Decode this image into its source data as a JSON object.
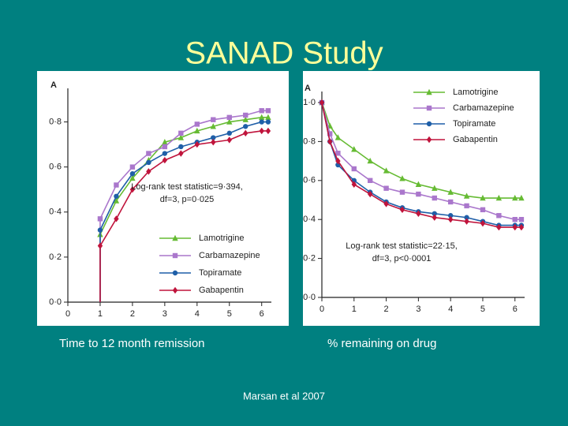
{
  "slide": {
    "title": "SANAD Study",
    "citation": "Marsan et al 2007"
  },
  "chart_data": [
    {
      "type": "line",
      "panel_label": "A",
      "caption": "Time to 12 month remission",
      "annotation": [
        "Log-rank test statistic=9·394,",
        "df=3, p=0·025"
      ],
      "legend": "lower right",
      "x": [
        1,
        1,
        1.5,
        2,
        2.5,
        3,
        3.5,
        4,
        4.5,
        5,
        5.5,
        6,
        6.2
      ],
      "series": [
        {
          "name": "Lamotrigine",
          "color": "#66bb33",
          "marker": "triangle",
          "values": [
            0,
            0.3,
            0.45,
            0.55,
            0.63,
            0.71,
            0.73,
            0.76,
            0.78,
            0.8,
            0.81,
            0.82,
            0.82
          ]
        },
        {
          "name": "Carbamazepine",
          "color": "#aa77cc",
          "marker": "square",
          "values": [
            0,
            0.37,
            0.52,
            0.6,
            0.66,
            0.69,
            0.75,
            0.79,
            0.81,
            0.82,
            0.83,
            0.85,
            0.85
          ]
        },
        {
          "name": "Topiramate",
          "color": "#1f5fa8",
          "marker": "circle",
          "values": [
            0,
            0.32,
            0.47,
            0.57,
            0.62,
            0.66,
            0.69,
            0.71,
            0.73,
            0.75,
            0.78,
            0.8,
            0.8
          ]
        },
        {
          "name": "Gabapentin",
          "color": "#c0143c",
          "marker": "diamond",
          "values": [
            0,
            0.25,
            0.37,
            0.5,
            0.58,
            0.63,
            0.66,
            0.7,
            0.71,
            0.72,
            0.75,
            0.76,
            0.76
          ]
        }
      ],
      "xlim": [
        0,
        6.3
      ],
      "xticks": [
        0,
        1,
        2,
        3,
        4,
        5,
        6
      ],
      "ylim": [
        0,
        0.9
      ],
      "yticks": [
        {
          "value": 0,
          "label": "0·0"
        },
        {
          "value": 0.2,
          "label": "0·2"
        },
        {
          "value": 0.4,
          "label": "0·4"
        },
        {
          "value": 0.6,
          "label": "0·6"
        },
        {
          "value": 0.8,
          "label": "0·8"
        }
      ]
    },
    {
      "type": "line",
      "panel_label": "A",
      "caption": "% remaining on drug",
      "annotation": [
        "Log-rank test statistic=22·15,",
        "df=3, p<0·0001"
      ],
      "legend": "upper right",
      "x": [
        0,
        0.25,
        0.5,
        1,
        1.5,
        2,
        2.5,
        3,
        3.5,
        4,
        4.5,
        5,
        5.5,
        6,
        6.2
      ],
      "series": [
        {
          "name": "Lamotrigine",
          "color": "#66bb33",
          "marker": "triangle",
          "values": [
            1.0,
            0.88,
            0.82,
            0.76,
            0.7,
            0.65,
            0.61,
            0.58,
            0.56,
            0.54,
            0.52,
            0.51,
            0.51,
            0.51,
            0.51
          ]
        },
        {
          "name": "Carbamazepine",
          "color": "#aa77cc",
          "marker": "square",
          "values": [
            1.0,
            0.84,
            0.74,
            0.66,
            0.6,
            0.56,
            0.54,
            0.53,
            0.51,
            0.49,
            0.47,
            0.45,
            0.42,
            0.4,
            0.4
          ]
        },
        {
          "name": "Topiramate",
          "color": "#1f5fa8",
          "marker": "circle",
          "values": [
            1.0,
            0.8,
            0.68,
            0.6,
            0.54,
            0.49,
            0.46,
            0.44,
            0.43,
            0.42,
            0.41,
            0.39,
            0.37,
            0.37,
            0.37
          ]
        },
        {
          "name": "Gabapentin",
          "color": "#c0143c",
          "marker": "diamond",
          "values": [
            1.0,
            0.8,
            0.7,
            0.58,
            0.53,
            0.48,
            0.45,
            0.43,
            0.41,
            0.4,
            0.39,
            0.38,
            0.36,
            0.36,
            0.36
          ]
        }
      ],
      "xlim": [
        0,
        6.3
      ],
      "xticks": [
        0,
        1,
        2,
        3,
        4,
        5,
        6
      ],
      "ylim": [
        0,
        1.0
      ],
      "yticks": [
        {
          "value": 0,
          "label": "0·0"
        },
        {
          "value": 0.2,
          "label": "0·2"
        },
        {
          "value": 0.4,
          "label": "0·4"
        },
        {
          "value": 0.6,
          "label": "0·6"
        },
        {
          "value": 0.8,
          "label": "0·8"
        },
        {
          "value": 1.0,
          "label": "1·0"
        }
      ]
    }
  ]
}
